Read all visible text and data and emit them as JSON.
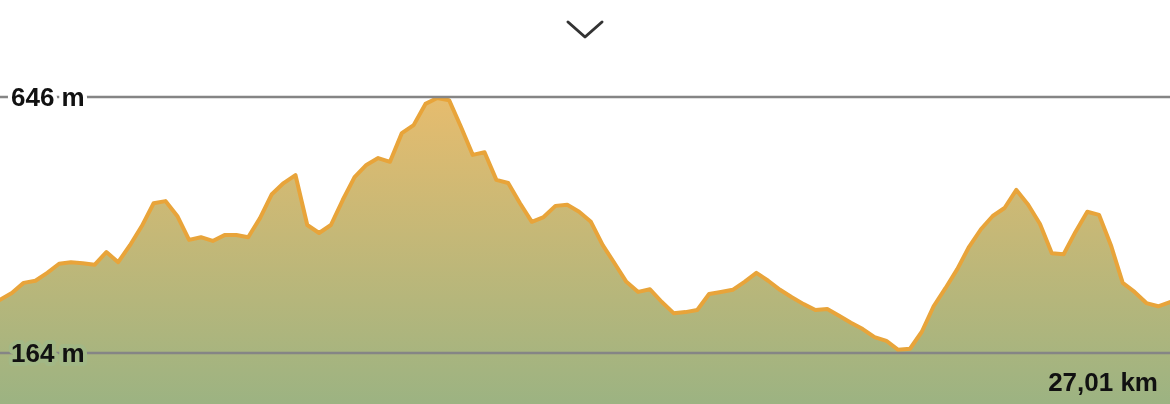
{
  "chart_data": {
    "type": "area",
    "ylim": [
      164,
      646
    ],
    "yticks": [
      {
        "value": 646,
        "label": "646 m"
      },
      {
        "value": 164,
        "label": "164 m"
      }
    ],
    "grid": "y",
    "annotations": [
      "27,01 km"
    ],
    "categories": [
      null,
      null,
      null,
      null,
      null,
      null,
      null,
      null,
      null,
      null,
      null,
      null,
      null,
      null,
      null,
      null,
      null,
      null,
      null,
      null,
      null,
      null,
      null,
      null,
      null,
      null,
      null,
      null,
      null,
      null,
      null,
      null,
      null,
      null,
      null,
      null,
      null,
      null,
      null,
      null,
      null,
      null,
      null,
      null,
      null,
      null,
      null,
      null,
      null,
      null,
      null,
      null,
      null,
      null,
      null,
      null,
      null,
      null,
      null,
      null,
      null,
      null,
      null,
      null,
      null,
      null,
      null,
      null,
      null,
      null,
      null,
      null,
      null,
      null,
      null,
      null,
      null,
      null,
      null,
      null,
      null,
      null,
      null,
      null,
      null,
      null,
      null,
      null,
      null,
      null,
      null,
      null,
      null,
      null,
      null,
      null,
      null,
      null,
      null,
      null
    ],
    "series": [
      {
        "color": "#e8a43a",
        "values": [
          264,
          277,
          296,
          300,
          315,
          332,
          335,
          333,
          330,
          354,
          335,
          367,
          403,
          446,
          450,
          422,
          377,
          382,
          375,
          386,
          386,
          382,
          418,
          463,
          484,
          499,
          405,
          390,
          405,
          452,
          495,
          518,
          531,
          524,
          578,
          593,
          633,
          644,
          640,
          590,
          537,
          542,
          490,
          484,
          446,
          411,
          420,
          441,
          443,
          430,
          411,
          367,
          333,
          298,
          279,
          284,
          260,
          239,
          241,
          245,
          275,
          279,
          283,
          298,
          315,
          300,
          283,
          269,
          256,
          245,
          247,
          234,
          221,
          209,
          194,
          187,
          170,
          172,
          204,
          252,
          286,
          322,
          364,
          397,
          422,
          437,
          471,
          443,
          407,
          352,
          350,
          392,
          430,
          424,
          367,
          296,
          279,
          258,
          252,
          260
        ]
      }
    ]
  }
}
